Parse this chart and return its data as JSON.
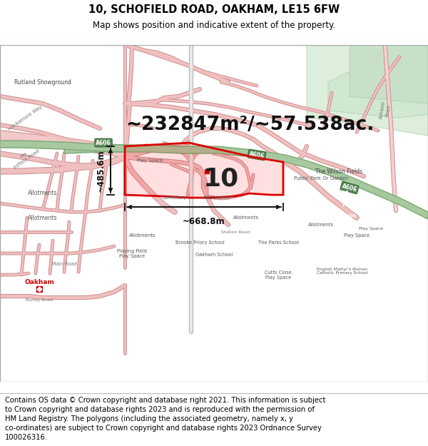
{
  "title_line1": "10, SCHOFIELD ROAD, OAKHAM, LE15 6FW",
  "title_line2": "Map shows position and indicative extent of the property.",
  "area_text": "~232847m²/~57.538ac.",
  "label_number": "10",
  "dim_left": "~485.6m",
  "dim_bottom": "~668.8m",
  "footer_lines": [
    "Contains OS data © Crown copyright and database right 2021. This information is subject",
    "to Crown copyright and database rights 2023 and is reproduced with the permission of",
    "HM Land Registry. The polygons (including the associated geometry, namely x, y",
    "co-ordinates) are subject to Crown copyright and database rights 2023 Ordnance Survey",
    "100026316."
  ],
  "map_bg": "#ffffff",
  "title_bg": "#ffffff",
  "footer_bg": "#ffffff",
  "road_fine_color": "#e8a8a8",
  "road_outline_color": "#d08080",
  "green_road_color": "#7db87d",
  "green_road_fill": "#a8d4a8",
  "a606_label_bg": "#6b8c6b",
  "property_edge": "#dd0000",
  "property_fill": "#ff000018",
  "dim_color": "#111111",
  "label_color": "#222222",
  "place_label_color": "#555555",
  "road_label_color": "#888888",
  "oakham_color": "#cc0000"
}
